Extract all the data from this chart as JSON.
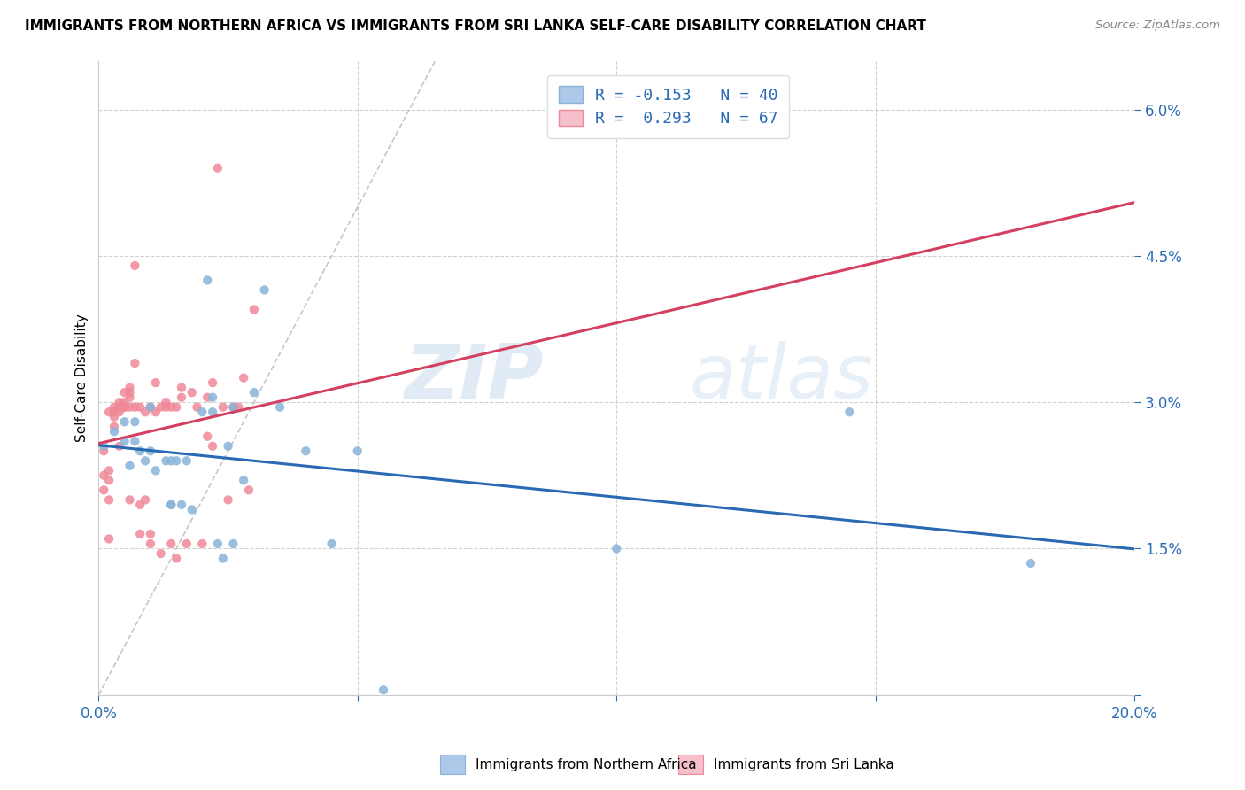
{
  "title": "IMMIGRANTS FROM NORTHERN AFRICA VS IMMIGRANTS FROM SRI LANKA SELF-CARE DISABILITY CORRELATION CHART",
  "source": "Source: ZipAtlas.com",
  "ylabel": "Self-Care Disability",
  "x_min": 0.0,
  "x_max": 0.2,
  "y_min": 0.0,
  "y_max": 0.065,
  "x_ticks": [
    0.0,
    0.05,
    0.1,
    0.15,
    0.2
  ],
  "x_tick_labels": [
    "0.0%",
    "",
    "",
    "",
    "20.0%"
  ],
  "y_ticks": [
    0.0,
    0.015,
    0.03,
    0.045,
    0.06
  ],
  "y_tick_labels": [
    "",
    "1.5%",
    "3.0%",
    "4.5%",
    "6.0%"
  ],
  "legend1_label": "R = -0.153   N = 40",
  "legend2_label": "R =  0.293   N = 67",
  "legend1_color": "#adc8e8",
  "legend2_color": "#f5bfcc",
  "scatter1_color": "#89b4d9",
  "scatter2_color": "#f08898",
  "line1_color": "#2a6ab5",
  "line2_color": "#d44060",
  "diagonal_color": "#c0c0c0",
  "watermark_zip": "ZIP",
  "watermark_atlas": "atlas",
  "blue_scatter_x": [
    0.001,
    0.003,
    0.005,
    0.005,
    0.006,
    0.007,
    0.007,
    0.008,
    0.009,
    0.01,
    0.01,
    0.011,
    0.013,
    0.014,
    0.014,
    0.014,
    0.015,
    0.016,
    0.017,
    0.018,
    0.02,
    0.021,
    0.022,
    0.022,
    0.023,
    0.024,
    0.025,
    0.026,
    0.026,
    0.028,
    0.03,
    0.032,
    0.035,
    0.04,
    0.045,
    0.05,
    0.055,
    0.1,
    0.145,
    0.18
  ],
  "blue_scatter_y": [
    0.0255,
    0.027,
    0.026,
    0.028,
    0.0235,
    0.026,
    0.028,
    0.025,
    0.024,
    0.025,
    0.0295,
    0.023,
    0.024,
    0.024,
    0.0195,
    0.0195,
    0.024,
    0.0195,
    0.024,
    0.019,
    0.029,
    0.0425,
    0.0305,
    0.029,
    0.0155,
    0.014,
    0.0255,
    0.0295,
    0.0155,
    0.022,
    0.031,
    0.0415,
    0.0295,
    0.025,
    0.0155,
    0.025,
    0.0005,
    0.015,
    0.029,
    0.0135
  ],
  "pink_scatter_x": [
    0.001,
    0.001,
    0.001,
    0.002,
    0.002,
    0.002,
    0.002,
    0.002,
    0.003,
    0.003,
    0.003,
    0.003,
    0.003,
    0.004,
    0.004,
    0.004,
    0.004,
    0.004,
    0.005,
    0.005,
    0.005,
    0.005,
    0.005,
    0.006,
    0.006,
    0.006,
    0.006,
    0.006,
    0.007,
    0.007,
    0.007,
    0.008,
    0.008,
    0.008,
    0.009,
    0.009,
    0.01,
    0.01,
    0.01,
    0.011,
    0.011,
    0.012,
    0.012,
    0.013,
    0.013,
    0.014,
    0.014,
    0.015,
    0.015,
    0.016,
    0.016,
    0.017,
    0.018,
    0.019,
    0.02,
    0.021,
    0.021,
    0.022,
    0.022,
    0.023,
    0.024,
    0.025,
    0.026,
    0.027,
    0.028,
    0.029,
    0.03
  ],
  "pink_scatter_y": [
    0.0225,
    0.025,
    0.021,
    0.02,
    0.023,
    0.022,
    0.016,
    0.029,
    0.029,
    0.0275,
    0.0295,
    0.029,
    0.0285,
    0.0255,
    0.029,
    0.0295,
    0.0295,
    0.03,
    0.0295,
    0.03,
    0.0295,
    0.0295,
    0.031,
    0.0295,
    0.02,
    0.031,
    0.0305,
    0.0315,
    0.0295,
    0.044,
    0.034,
    0.0195,
    0.0165,
    0.0295,
    0.029,
    0.02,
    0.0165,
    0.0155,
    0.0295,
    0.029,
    0.032,
    0.0145,
    0.0295,
    0.0295,
    0.03,
    0.0155,
    0.0295,
    0.0295,
    0.014,
    0.0305,
    0.0315,
    0.0155,
    0.031,
    0.0295,
    0.0155,
    0.0265,
    0.0305,
    0.032,
    0.0255,
    0.054,
    0.0295,
    0.02,
    0.0295,
    0.0295,
    0.0325,
    0.021,
    0.0395
  ]
}
